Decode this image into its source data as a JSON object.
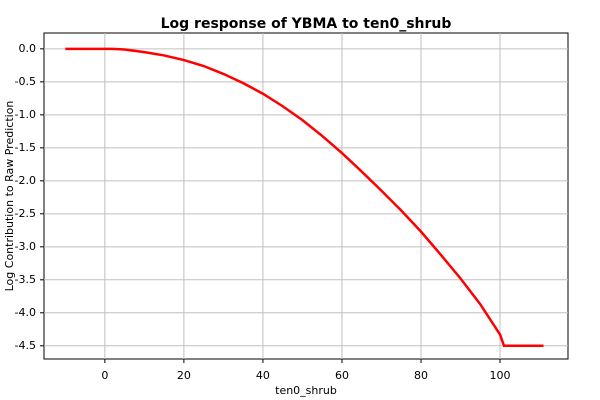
{
  "chart_data": {
    "type": "line",
    "title": "Log response of YBMA to ten0_shrub",
    "x_label": "ten0_shrub",
    "y_label": "Log Contribution to Raw Prediction",
    "x": [
      -10,
      0,
      2,
      5,
      10,
      15,
      20,
      25,
      30,
      35,
      40,
      45,
      50,
      55,
      60,
      65,
      70,
      75,
      80,
      85,
      90,
      95,
      100,
      101,
      111
    ],
    "series": [
      {
        "name": "ten0_shrub",
        "color": "#ff0000",
        "values": [
          0,
          0,
          0,
          -0.01,
          -0.05,
          -0.1,
          -0.17,
          -0.26,
          -0.38,
          -0.52,
          -0.68,
          -0.87,
          -1.08,
          -1.32,
          -1.58,
          -1.86,
          -2.15,
          -2.45,
          -2.77,
          -3.12,
          -3.48,
          -3.87,
          -4.33,
          -4.5,
          -4.5
        ]
      }
    ],
    "xlim": [
      -15.4,
      117.2
    ],
    "ylim": [
      -4.7,
      0.24
    ],
    "xticks": [
      0,
      20,
      40,
      60,
      80,
      100
    ],
    "yticks": [
      {
        "value": 0,
        "label": "0.0"
      },
      -0.5,
      {
        "value": -1,
        "label": "-1.0"
      },
      -1.5,
      {
        "value": -2,
        "label": "-2.0"
      },
      -2.5,
      {
        "value": -3,
        "label": "-3.0"
      },
      -3.5,
      {
        "value": -4,
        "label": "-4.0"
      },
      -4.5
    ],
    "grid": true
  }
}
